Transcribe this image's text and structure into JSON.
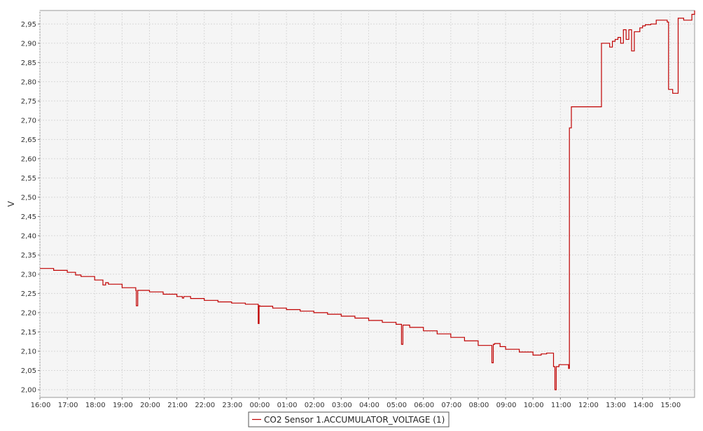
{
  "chart_data": {
    "type": "line",
    "step": true,
    "ylabel": "V",
    "xlabel": "",
    "ylim": [
      1.98,
      2.985
    ],
    "xlim": [
      0,
      23.9
    ],
    "y_ticks": [
      2.0,
      2.05,
      2.1,
      2.15,
      2.2,
      2.25,
      2.3,
      2.35,
      2.4,
      2.45,
      2.5,
      2.55,
      2.6,
      2.65,
      2.7,
      2.75,
      2.8,
      2.85,
      2.9,
      2.95
    ],
    "y_tick_labels": [
      "2,00",
      "2,05",
      "2,10",
      "2,15",
      "2,20",
      "2,25",
      "2,30",
      "2,35",
      "2,40",
      "2,45",
      "2,50",
      "2,55",
      "2,60",
      "2,65",
      "2,70",
      "2,75",
      "2,80",
      "2,85",
      "2,90",
      "2,95"
    ],
    "x_tick_labels": [
      "16:00",
      "17:00",
      "18:00",
      "19:00",
      "20:00",
      "21:00",
      "22:00",
      "23:00",
      "00:00",
      "01:00",
      "02:00",
      "03:00",
      "04:00",
      "05:00",
      "06:00",
      "07:00",
      "08:00",
      "09:00",
      "10:00",
      "11:00",
      "12:00",
      "13:00",
      "14:00",
      "15:00"
    ],
    "grid": true,
    "legend_position": "bottom-center",
    "line_color": "#c00000",
    "series": [
      {
        "name": "CO2 Sensor 1.ACCUMULATOR_VOLTAGE (1)",
        "x": [
          0.0,
          0.5,
          1.0,
          1.3,
          1.5,
          2.0,
          2.3,
          2.4,
          2.5,
          3.0,
          3.5,
          3.52,
          3.57,
          4.0,
          4.5,
          5.0,
          5.2,
          5.25,
          5.5,
          6.0,
          6.5,
          7.0,
          7.5,
          7.97,
          8.0,
          8.03,
          8.5,
          9.0,
          9.5,
          10.0,
          10.5,
          11.0,
          11.5,
          12.0,
          12.5,
          13.0,
          13.2,
          13.25,
          13.5,
          14.0,
          14.5,
          15.0,
          15.5,
          16.0,
          16.5,
          16.55,
          16.6,
          16.8,
          17.0,
          17.5,
          18.0,
          18.3,
          18.5,
          18.75,
          18.8,
          18.85,
          18.95,
          19.3,
          19.33,
          19.4,
          19.6,
          19.7,
          20.0,
          20.1,
          20.3,
          20.4,
          20.5,
          20.6,
          20.8,
          20.9,
          21.0,
          21.1,
          21.2,
          21.3,
          21.4,
          21.5,
          21.6,
          21.7,
          21.9,
          22.0,
          22.1,
          22.3,
          22.5,
          22.9,
          22.95,
          23.1,
          23.3,
          23.5,
          23.8,
          23.9
        ],
        "y": [
          2.315,
          2.31,
          2.305,
          2.298,
          2.294,
          2.285,
          2.272,
          2.278,
          2.274,
          2.265,
          2.258,
          2.218,
          2.258,
          2.254,
          2.248,
          2.242,
          2.238,
          2.242,
          2.237,
          2.232,
          2.228,
          2.225,
          2.222,
          2.172,
          2.218,
          2.217,
          2.212,
          2.208,
          2.204,
          2.2,
          2.196,
          2.191,
          2.186,
          2.18,
          2.175,
          2.17,
          2.118,
          2.168,
          2.162,
          2.153,
          2.145,
          2.136,
          2.127,
          2.115,
          2.07,
          2.118,
          2.12,
          2.112,
          2.105,
          2.098,
          2.09,
          2.093,
          2.095,
          2.06,
          2.0,
          2.06,
          2.065,
          2.055,
          2.68,
          2.735,
          2.735,
          2.735,
          2.735,
          2.735,
          2.735,
          2.735,
          2.9,
          2.9,
          2.89,
          2.905,
          2.91,
          2.915,
          2.9,
          2.935,
          2.91,
          2.935,
          2.88,
          2.93,
          2.94,
          2.945,
          2.948,
          2.95,
          2.96,
          2.955,
          2.78,
          2.77,
          2.965,
          2.96,
          2.975,
          2.985
        ]
      }
    ]
  }
}
